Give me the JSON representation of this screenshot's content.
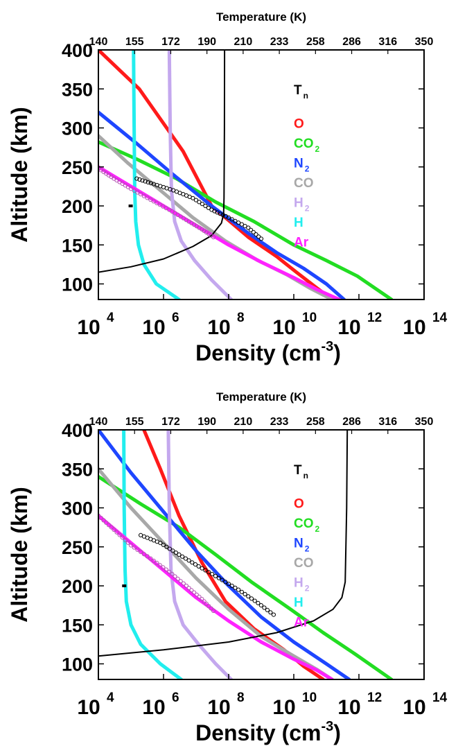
{
  "chart_data": [
    {
      "type": "line",
      "xlabel": "Density (cm",
      "xlabel_exponent": "-3",
      "xlabel_suffix": ")",
      "ylabel": "Altitude (km)",
      "top_axis_label": "Temperature (K)",
      "x_scale": "log",
      "xlim": [
        10000,
        100000000000000
      ],
      "ylim": [
        80,
        400
      ],
      "x_tick_base": "10",
      "x_tick_exponents": [
        "4",
        "6",
        "8",
        "10",
        "12",
        "14"
      ],
      "y_ticks": [
        "100",
        "150",
        "200",
        "250",
        "300",
        "350",
        "400"
      ],
      "top_ticks": [
        "140",
        "155",
        "172",
        "190",
        "210",
        "233",
        "258",
        "286",
        "316",
        "350"
      ],
      "legend": [
        {
          "text": "T",
          "sub": "n",
          "color": "#000000"
        },
        {
          "text": "O",
          "sub": "",
          "color": "#ff1a1a"
        },
        {
          "text": "CO",
          "sub": "2",
          "color": "#22dd22"
        },
        {
          "text": "N",
          "sub": "2",
          "color": "#1e46ff"
        },
        {
          "text": "CO",
          "sub": "",
          "color": "#a8a8a8"
        },
        {
          "text": "H",
          "sub": "2",
          "color": "#c4a8ee"
        },
        {
          "text": "H",
          "sub": "",
          "color": "#22eeee"
        },
        {
          "text": "Ar",
          "sub": "",
          "color": "#ff22ff"
        }
      ],
      "series": [
        {
          "name": "O",
          "color": "#ff1a1a",
          "x": [
            10000.0,
            180000.0,
            4000000.0,
            30000000.0,
            400000000.0,
            3000000000.0,
            12000000000.0,
            50000000000.0,
            150000000000.0
          ],
          "y": [
            400,
            350,
            270,
            200,
            160,
            135,
            115,
            95,
            80
          ]
        },
        {
          "name": "CO2",
          "color": "#22dd22",
          "x": [
            10000.0,
            150000.0,
            2500000.0,
            40000000.0,
            600000000.0,
            10000000000.0,
            100000000000.0,
            900000000000.0,
            10000000000000.0
          ],
          "y": [
            282,
            260,
            235,
            205,
            180,
            150,
            130,
            110,
            80
          ]
        },
        {
          "name": "N2",
          "color": "#1e46ff",
          "x": [
            10000.0,
            150000.0,
            2000000.0,
            30000000.0,
            400000000.0,
            3000000000.0,
            20000000000.0,
            100000000000.0,
            350000000000.0
          ],
          "y": [
            320,
            280,
            240,
            200,
            165,
            140,
            120,
            100,
            80
          ]
        },
        {
          "name": "CO",
          "color": "#a8a8a8",
          "x": [
            10000.0,
            80000.0,
            800000.0,
            8000000.0,
            80000000.0,
            800000000.0,
            6000000000.0,
            30000000000.0,
            150000000000.0
          ],
          "y": [
            290,
            255,
            220,
            185,
            155,
            130,
            112,
            95,
            80
          ]
        },
        {
          "name": "H2",
          "color": "#c4a8ee",
          "x": [
            1500000.0,
            1600000.0,
            1750000.0,
            2200000.0,
            3500000.0,
            9000000.0,
            30000000.0,
            120000000.0
          ],
          "y": [
            400,
            300,
            220,
            180,
            155,
            130,
            105,
            80
          ]
        },
        {
          "name": "H",
          "color": "#22eeee",
          "x": [
            120000.0,
            125000.0,
            130000.0,
            140000.0,
            170000.0,
            250000.0,
            600000.0,
            3000000.0
          ],
          "y": [
            400,
            300,
            220,
            180,
            150,
            125,
            100,
            80
          ]
        },
        {
          "name": "Ar",
          "color": "#ff22ff",
          "x": [
            10000.0,
            100000.0,
            1000000.0,
            10000000.0,
            100000000.0,
            1000000000.0,
            10000000000.0,
            50000000000.0,
            250000000000.0
          ],
          "y": [
            250,
            225,
            200,
            175,
            150,
            128,
            108,
            93,
            80
          ]
        },
        {
          "name": "Tn",
          "color": "#000000",
          "width": 2,
          "x": [
            10000.0,
            100000.0,
            1000000.0,
            8000000.0,
            30000000.0,
            60000000.0,
            70000000.0,
            72000000.0,
            74000000.0,
            75000000.0
          ],
          "y": [
            115,
            122,
            132,
            148,
            162,
            178,
            190,
            210,
            300,
            400
          ]
        }
      ],
      "observations": [
        {
          "x": [
            150000.0,
            500000.0,
            2000000.0,
            8000000.0,
            30000000.0,
            100000000.0,
            400000000.0,
            1200000000.0
          ],
          "y": [
            235,
            228,
            220,
            210,
            195,
            185,
            172,
            155
          ],
          "color": "#000000"
        },
        {
          "x": [
            10000.0,
            30000.0,
            100000.0,
            400000.0,
            1500000.0,
            5000000.0,
            15000000.0,
            40000000.0
          ],
          "y": [
            248,
            235,
            222,
            208,
            195,
            182,
            170,
            158
          ],
          "color": "#b050b0"
        }
      ],
      "marker": {
        "x": 98000.0,
        "y": 200
      }
    },
    {
      "type": "line",
      "xlabel": "Density (cm",
      "xlabel_exponent": "-3",
      "xlabel_suffix": ")",
      "ylabel": "Altitude (km)",
      "top_axis_label": "Temperature (K)",
      "x_scale": "log",
      "xlim": [
        10000,
        100000000000000
      ],
      "ylim": [
        80,
        400
      ],
      "x_tick_base": "10",
      "x_tick_exponents": [
        "4",
        "6",
        "8",
        "10",
        "12",
        "14"
      ],
      "y_ticks": [
        "100",
        "150",
        "200",
        "250",
        "300",
        "350",
        "400"
      ],
      "top_ticks": [
        "140",
        "155",
        "172",
        "190",
        "210",
        "233",
        "258",
        "286",
        "316",
        "350"
      ],
      "legend": [
        {
          "text": "T",
          "sub": "n",
          "color": "#000000"
        },
        {
          "text": "O",
          "sub": "",
          "color": "#ff1a1a"
        },
        {
          "text": "CO",
          "sub": "2",
          "color": "#22dd22"
        },
        {
          "text": "N",
          "sub": "2",
          "color": "#1e46ff"
        },
        {
          "text": "CO",
          "sub": "",
          "color": "#a8a8a8"
        },
        {
          "text": "H",
          "sub": "2",
          "color": "#c4a8ee"
        },
        {
          "text": "H",
          "sub": "",
          "color": "#22eeee"
        },
        {
          "text": "Ar",
          "sub": "",
          "color": "#ff22ff"
        }
      ],
      "series": [
        {
          "name": "O",
          "color": "#ff1a1a",
          "x": [
            250000.0,
            800000.0,
            3000000.0,
            15000000.0,
            80000000.0,
            600000000.0,
            5000000000.0,
            20000000000.0,
            80000000000.0
          ],
          "y": [
            400,
            350,
            290,
            230,
            180,
            145,
            118,
            97,
            80
          ]
        },
        {
          "name": "CO2",
          "color": "#22dd22",
          "x": [
            10000.0,
            200000.0,
            3000000.0,
            40000000.0,
            500000000.0,
            8000000000.0,
            80000000000.0,
            800000000000.0,
            10000000000000.0
          ],
          "y": [
            340,
            305,
            275,
            240,
            205,
            170,
            140,
            112,
            80
          ]
        },
        {
          "name": "N2",
          "color": "#1e46ff",
          "x": [
            10000.0,
            100000.0,
            1000000.0,
            10000000.0,
            100000000.0,
            1000000000.0,
            10000000000.0,
            100000000000.0,
            500000000000.0
          ],
          "y": [
            400,
            345,
            295,
            245,
            200,
            160,
            128,
            100,
            80
          ]
        },
        {
          "name": "CO",
          "color": "#a8a8a8",
          "x": [
            10000.0,
            100000.0,
            1000000.0,
            10000000.0,
            100000000.0,
            1000000000.0,
            10000000000.0,
            50000000000.0,
            150000000000.0
          ],
          "y": [
            350,
            300,
            255,
            210,
            170,
            135,
            110,
            93,
            80
          ]
        },
        {
          "name": "H2",
          "color": "#c4a8ee",
          "x": [
            1400000.0,
            1500000.0,
            1700000.0,
            2200000.0,
            4000000.0,
            12000000.0,
            40000000.0,
            120000000.0
          ],
          "y": [
            400,
            300,
            220,
            180,
            150,
            125,
            100,
            80
          ]
        },
        {
          "name": "H",
          "color": "#22eeee",
          "x": [
            60000.0,
            62000.0,
            66000.0,
            72000.0,
            100000.0,
            200000.0,
            800000.0,
            3500000.0
          ],
          "y": [
            400,
            300,
            220,
            180,
            150,
            125,
            100,
            80
          ]
        },
        {
          "name": "Ar",
          "color": "#ff22ff",
          "x": [
            10000.0,
            100000.0,
            1000000.0,
            10000000.0,
            100000000.0,
            1000000000.0,
            10000000000.0,
            50000000000.0,
            150000000000.0
          ],
          "y": [
            290,
            255,
            220,
            185,
            155,
            128,
            106,
            92,
            80
          ]
        },
        {
          "name": "Tn",
          "color": "#000000",
          "width": 2,
          "x": [
            10000.0,
            1000000.0,
            100000000.0,
            3000000000.0,
            40000000000.0,
            160000000000.0,
            300000000000.0,
            380000000000.0,
            420000000000.0,
            440000000000.0
          ],
          "y": [
            110,
            118,
            128,
            140,
            155,
            170,
            185,
            205,
            300,
            400
          ]
        }
      ],
      "observations": [
        {
          "x": [
            200000.0,
            800000.0,
            3000000.0,
            12000000.0,
            50000000.0,
            200000000.0,
            800000000.0,
            3000000000.0
          ],
          "y": [
            265,
            255,
            240,
            225,
            210,
            195,
            178,
            160
          ],
          "color": "#000000"
        },
        {
          "x": [
            10000.0,
            30000.0,
            100000.0,
            400000.0,
            1500000.0,
            5000000.0,
            15000000.0,
            40000000.0
          ],
          "y": [
            290,
            272,
            252,
            235,
            218,
            200,
            183,
            165
          ],
          "color": "#b050b0"
        }
      ],
      "marker": {
        "x": 62000.0,
        "y": 200
      }
    }
  ]
}
